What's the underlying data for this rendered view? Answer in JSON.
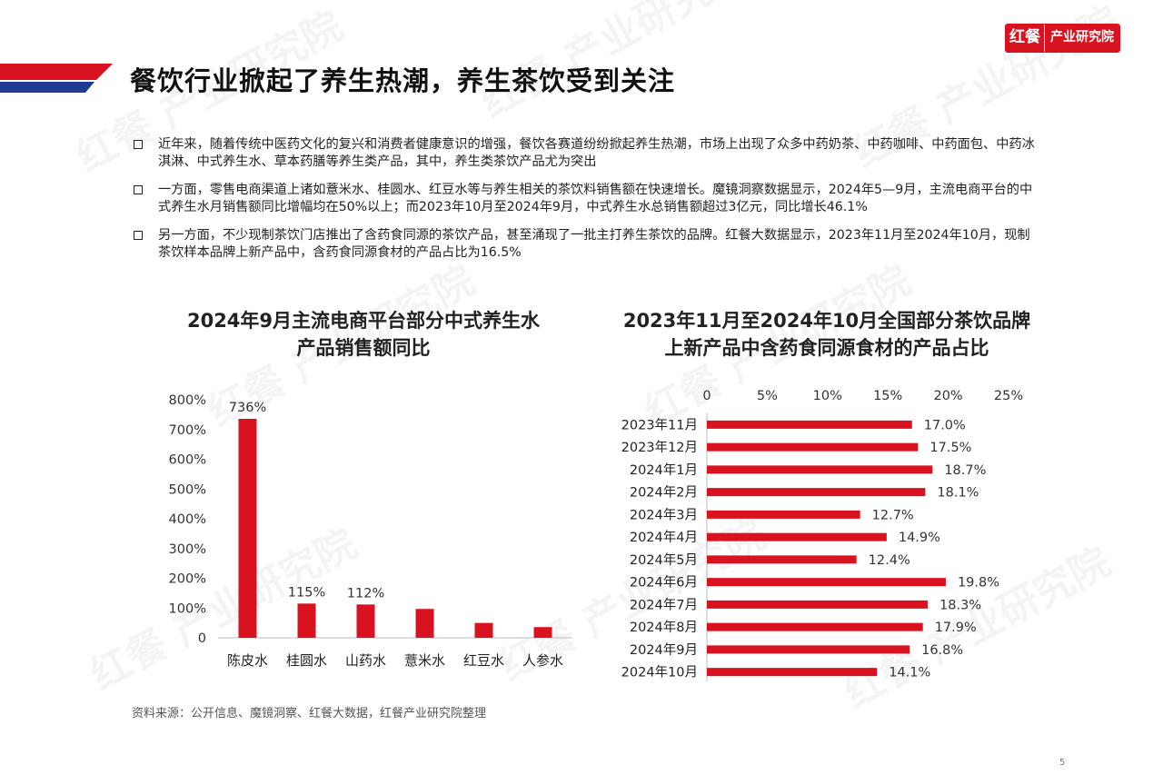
{
  "logo": {
    "mark": "红餐",
    "text": "产业研究院"
  },
  "page_title": "餐饮行业掀起了养生热潮，养生茶饮受到关注",
  "bullets": [
    "近年来，随着传统中医药文化的复兴和消费者健康意识的增强，餐饮各赛道纷纷掀起养生热潮，市场上出现了众多中药奶茶、中药咖啡、中药面包、中药冰淇淋、中式养生水、草本药膳等养生类产品，其中，养生类茶饮产品尤为突出",
    "一方面，零售电商渠道上诸如薏米水、桂圆水、红豆水等与养生相关的茶饮料销售额在快速增长。魔镜洞察数据显示，2024年5—9月，主流电商平台的中式养生水月销售额同比增幅均在50%以上；而2023年10月至2024年9月，中式养生水总销售额超过3亿元，同比增长46.1%",
    "另一方面，不少现制茶饮门店推出了含药食同源的茶饮产品，甚至涌现了一批主打养生茶饮的品牌。红餐大数据显示，2023年11月至2024年10月，现制茶饮样本品牌上新产品中，含药食同源食材的产品占比为16.5%"
  ],
  "source": "资料来源：公开信息、魔镜洞察、红餐大数据，红餐产业研究院整理",
  "page_number": "5",
  "colors": {
    "accent": "#d9121f",
    "navy": "#1f3a93"
  },
  "chart_data": [
    {
      "type": "bar",
      "title": "2024年9月主流电商平台部分中式养生水产品销售额同比",
      "title_lines": [
        "2024年9月主流电商平台部分中式养生水",
        "产品销售额同比"
      ],
      "categories": [
        "陈皮水",
        "桂圆水",
        "山药水",
        "薏米水",
        "红豆水",
        "人参水"
      ],
      "values": [
        736,
        115,
        112,
        97,
        50,
        36
      ],
      "data_labels": [
        "736%",
        "115%",
        "112%",
        "",
        "",
        ""
      ],
      "ylim": [
        0,
        800
      ],
      "y_ticks": [
        "800%",
        "700%",
        "600%",
        "500%",
        "400%",
        "300%",
        "200%",
        "100%",
        "0"
      ],
      "grid": false
    },
    {
      "type": "bar",
      "orientation": "horizontal",
      "title": "2023年11月至2024年10月全国部分茶饮品牌上新产品中含药食同源食材的产品占比",
      "title_lines": [
        "2023年11月至2024年10月全国部分茶饮品牌",
        "上新产品中含药食同源食材的产品占比"
      ],
      "categories": [
        "2023年11月",
        "2023年12月",
        "2024年1月",
        "2024年2月",
        "2024年3月",
        "2024年4月",
        "2024年5月",
        "2024年6月",
        "2024年7月",
        "2024年8月",
        "2024年9月",
        "2024年10月"
      ],
      "values": [
        17.0,
        17.5,
        18.7,
        18.1,
        12.7,
        14.9,
        12.4,
        19.8,
        18.3,
        17.9,
        16.8,
        14.1
      ],
      "data_labels": [
        "17.0%",
        "17.5%",
        "18.7%",
        "18.1%",
        "12.7%",
        "14.9%",
        "12.4%",
        "19.8%",
        "18.3%",
        "17.9%",
        "16.8%",
        "14.1%"
      ],
      "xlim": [
        0,
        25
      ],
      "x_ticks": [
        "0",
        "5%",
        "10%",
        "15%",
        "20%",
        "25%"
      ],
      "axis_position": "top",
      "grid": false
    }
  ]
}
